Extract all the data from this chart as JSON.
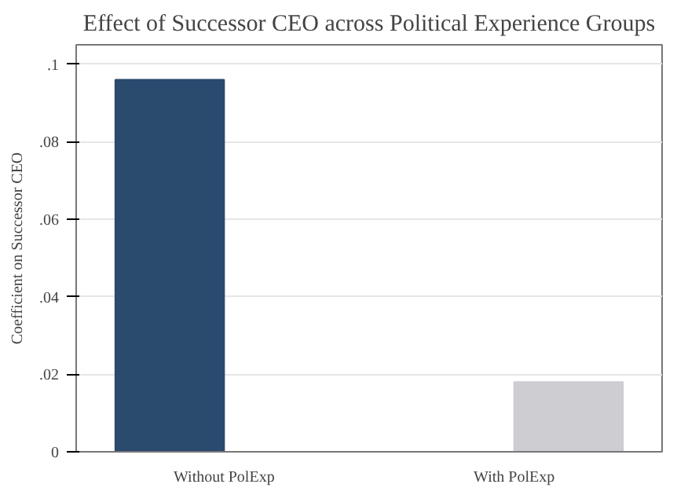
{
  "chart_data": {
    "type": "bar",
    "title": "Effect of Successor CEO across Political Experience Groups",
    "ylabel": "Coefficient on Successor CEO",
    "categories": [
      "Without PolExp",
      "With PolExp"
    ],
    "series": [
      {
        "color": "#2a4a6e",
        "values": [
          0.096,
          null
        ]
      },
      {
        "color": "#cdcdd2",
        "values": [
          null,
          0.018
        ]
      }
    ],
    "ylim": [
      0,
      0.105
    ],
    "yticks": [
      {
        "value": 0,
        "label": "0"
      },
      {
        "value": 0.02,
        "label": ".02"
      },
      {
        "value": 0.04,
        "label": ".04"
      },
      {
        "value": 0.06,
        "label": ".06"
      },
      {
        "value": 0.08,
        "label": ".08"
      },
      {
        "value": 0.1,
        "label": ".1"
      }
    ],
    "grid": "y"
  }
}
